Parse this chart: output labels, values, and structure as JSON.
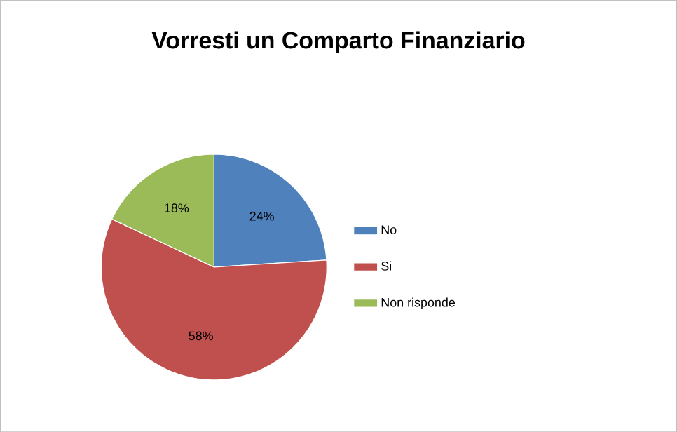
{
  "chart_data": {
    "type": "pie",
    "title": "Vorresti un Comparto Finanziario",
    "categories": [
      "No",
      "Si",
      "Non risponde"
    ],
    "values": [
      24,
      58,
      18
    ],
    "colors": [
      "#4f81bd",
      "#c0504d",
      "#9bbb59"
    ],
    "value_labels": [
      "24%",
      "58%",
      "18%"
    ],
    "legend": "right"
  }
}
